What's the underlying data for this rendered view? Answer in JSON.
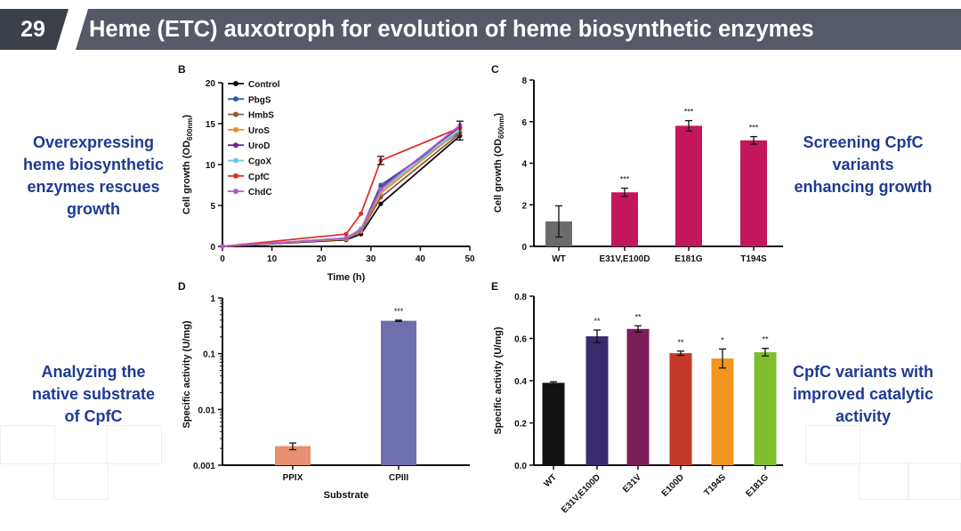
{
  "slide": {
    "number": "29",
    "title": "Heme (ETC) auxotroph for evolution of heme biosynthetic enzymes"
  },
  "captions": {
    "top_left": [
      "Overexpressing",
      "heme biosynthetic",
      "enzymes rescues",
      "growth"
    ],
    "top_right": [
      "Screening CpfC",
      "variants",
      "enhancing growth"
    ],
    "bottom_left": [
      "Analyzing the",
      "native substrate",
      "of CpfC"
    ],
    "bottom_right": [
      "CpfC variants with",
      "improved catalytic",
      "activity"
    ]
  },
  "chart_data": [
    {
      "panel": "B",
      "type": "line",
      "xlabel": "Time (h)",
      "ylabel": "Cell growth (OD600nm)",
      "xlim": [
        0,
        50
      ],
      "ylim": [
        0,
        20
      ],
      "xticks": [
        0,
        10,
        20,
        30,
        40,
        50
      ],
      "yticks": [
        0,
        5,
        10,
        15,
        20
      ],
      "x": [
        0,
        25,
        28,
        32,
        48
      ],
      "legend_position": "top-left",
      "series": [
        {
          "name": "Control",
          "color": "#111111",
          "values": [
            0,
            0.8,
            1.5,
            5.2,
            13.5
          ]
        },
        {
          "name": "PbgS",
          "color": "#2d5fb6",
          "values": [
            0,
            0.9,
            2.0,
            7.5,
            14.0
          ]
        },
        {
          "name": "HmbS",
          "color": "#8a5a3c",
          "values": [
            0,
            0.9,
            1.8,
            6.0,
            13.8
          ]
        },
        {
          "name": "UroS",
          "color": "#f08a24",
          "values": [
            0,
            0.9,
            1.9,
            6.5,
            14.2
          ]
        },
        {
          "name": "UroD",
          "color": "#6a2a8a",
          "values": [
            0,
            1.0,
            2.1,
            7.2,
            14.6
          ]
        },
        {
          "name": "CgoX",
          "color": "#6ec3e0",
          "values": [
            0,
            1.0,
            2.2,
            6.8,
            14.3
          ]
        },
        {
          "name": "CpfC",
          "color": "#e03030",
          "values": [
            0,
            1.5,
            4.0,
            10.5,
            14.5
          ]
        },
        {
          "name": "ChdC",
          "color": "#b05cc8",
          "values": [
            0,
            1.0,
            2.0,
            7.0,
            14.8
          ]
        }
      ]
    },
    {
      "panel": "C",
      "type": "bar",
      "ylabel": "Cell growth (OD600nm)",
      "ylim": [
        0,
        8
      ],
      "yticks": [
        0,
        2,
        4,
        6,
        8
      ],
      "categories": [
        "WT",
        "E31V,E100D",
        "E181G",
        "T194S"
      ],
      "values": [
        1.2,
        2.6,
        5.8,
        5.1
      ],
      "errors": [
        0.75,
        0.2,
        0.25,
        0.18
      ],
      "significance": [
        "",
        "***",
        "***",
        "***"
      ],
      "colors": [
        "#6b6b6b",
        "#c2185b",
        "#c2185b",
        "#c2185b"
      ]
    },
    {
      "panel": "D",
      "type": "bar",
      "scale": "log",
      "xlabel": "Substrate",
      "ylabel": "Specific activity (U/mg)",
      "ylim": [
        0.001,
        1
      ],
      "yticks": [
        0.001,
        0.01,
        0.1,
        1
      ],
      "ytick_labels": [
        "0.001",
        "0.01",
        "0.1",
        "1"
      ],
      "categories": [
        "PPIX",
        "CPIII"
      ],
      "values": [
        0.0022,
        0.39
      ],
      "errors": [
        0.0003,
        0.01
      ],
      "significance": [
        "",
        "***"
      ],
      "colors": [
        "#e8906f",
        "#6f6fae"
      ]
    },
    {
      "panel": "E",
      "type": "bar",
      "ylabel": "Specific activity (U/mg)",
      "ylim": [
        0,
        0.8
      ],
      "yticks": [
        0,
        0.2,
        0.4,
        0.6,
        0.8
      ],
      "ytick_labels": [
        "0.0",
        "0.2",
        "0.4",
        "0.6",
        "0.8"
      ],
      "categories": [
        "WT",
        "E31V,E100D",
        "E31V",
        "E100D",
        "T194S",
        "E181G"
      ],
      "values": [
        0.39,
        0.61,
        0.645,
        0.53,
        0.505,
        0.535
      ],
      "errors": [
        0.005,
        0.03,
        0.015,
        0.01,
        0.045,
        0.018
      ],
      "significance": [
        "",
        "**",
        "**",
        "**",
        "*",
        "**"
      ],
      "colors": [
        "#111111",
        "#3a2a6e",
        "#7b1f5a",
        "#c43a2a",
        "#f0961e",
        "#7fbf2e"
      ]
    }
  ]
}
